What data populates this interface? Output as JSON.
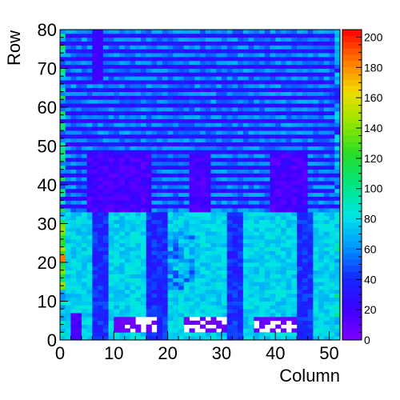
{
  "chart_data": {
    "type": "heatmap",
    "title": "",
    "xlabel": "Column",
    "ylabel": "Row",
    "xlim": [
      0,
      52
    ],
    "ylim": [
      0,
      80
    ],
    "zlim": [
      0,
      205
    ],
    "x_ticks": [
      0,
      10,
      20,
      30,
      40,
      50
    ],
    "y_ticks": [
      0,
      10,
      20,
      30,
      40,
      50,
      60,
      70,
      80
    ],
    "z_ticks": [
      0,
      20,
      40,
      60,
      80,
      100,
      120,
      140,
      160,
      180,
      200
    ],
    "colormap": "rainbow (violet-blue-cyan-green-yellow-red)",
    "grid": false,
    "n_columns": 52,
    "n_rows": 80,
    "bin_width": 1,
    "empty_cells_color": "#ffffff",
    "description_values": {
      "upper_region_rows_33_80": "striped pattern alternating roughly 25 (blue) and 55 (cyan) by row",
      "middle_band_rows_33_47": "dark blue-violet blocks around 15 at columns 5-16, 24-27, 39-45",
      "lower_region_rows_0_32": "mostly 60-85 (cyan-green), with darker blue columns around 30",
      "bottom_blocks_rows_2_5": "violet (~5) blocks with empty (white) cells at columns 10-18, 23-31, 36-44",
      "left_edge_column_0": "warmer values 100-160 (green-yellow-orange) near rows 15-30"
    }
  }
}
